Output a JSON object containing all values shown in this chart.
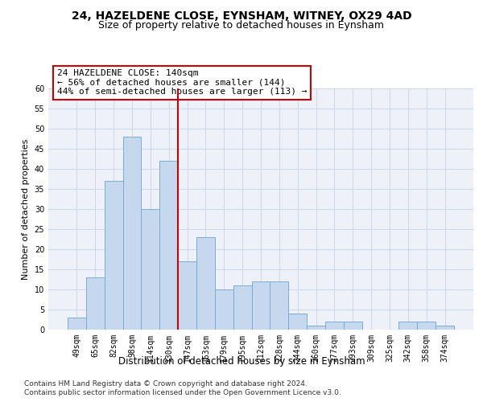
{
  "title1": "24, HAZELDENE CLOSE, EYNSHAM, WITNEY, OX29 4AD",
  "title2": "Size of property relative to detached houses in Eynsham",
  "xlabel": "Distribution of detached houses by size in Eynsham",
  "ylabel": "Number of detached properties",
  "categories": [
    "49sqm",
    "65sqm",
    "82sqm",
    "98sqm",
    "114sqm",
    "130sqm",
    "147sqm",
    "163sqm",
    "179sqm",
    "195sqm",
    "212sqm",
    "228sqm",
    "244sqm",
    "260sqm",
    "277sqm",
    "293sqm",
    "309sqm",
    "325sqm",
    "342sqm",
    "358sqm",
    "374sqm"
  ],
  "values": [
    3,
    13,
    37,
    48,
    30,
    42,
    17,
    23,
    10,
    11,
    12,
    12,
    4,
    1,
    2,
    2,
    0,
    0,
    2,
    2,
    1
  ],
  "bar_color": "#c5d8ed",
  "bar_edge_color": "#7aadd4",
  "bar_width": 1.0,
  "vline_x": 6.0,
  "vline_color": "#cc0000",
  "annotation_line1": "24 HAZELDENE CLOSE: 140sqm",
  "annotation_line2": "← 56% of detached houses are smaller (144)",
  "annotation_line3": "44% of semi-detached houses are larger (113) →",
  "annotation_box_color": "#ffffff",
  "annotation_box_edge": "#cc0000",
  "ylim": [
    0,
    60
  ],
  "yticks": [
    0,
    5,
    10,
    15,
    20,
    25,
    30,
    35,
    40,
    45,
    50,
    55,
    60
  ],
  "grid_color": "#d0d8e8",
  "background_color": "#eef2f8",
  "footer1": "Contains HM Land Registry data © Crown copyright and database right 2024.",
  "footer2": "Contains public sector information licensed under the Open Government Licence v3.0.",
  "title1_fontsize": 10,
  "title2_fontsize": 9,
  "xlabel_fontsize": 8.5,
  "ylabel_fontsize": 8,
  "tick_fontsize": 7,
  "annotation_fontsize": 8,
  "footer_fontsize": 6.5
}
